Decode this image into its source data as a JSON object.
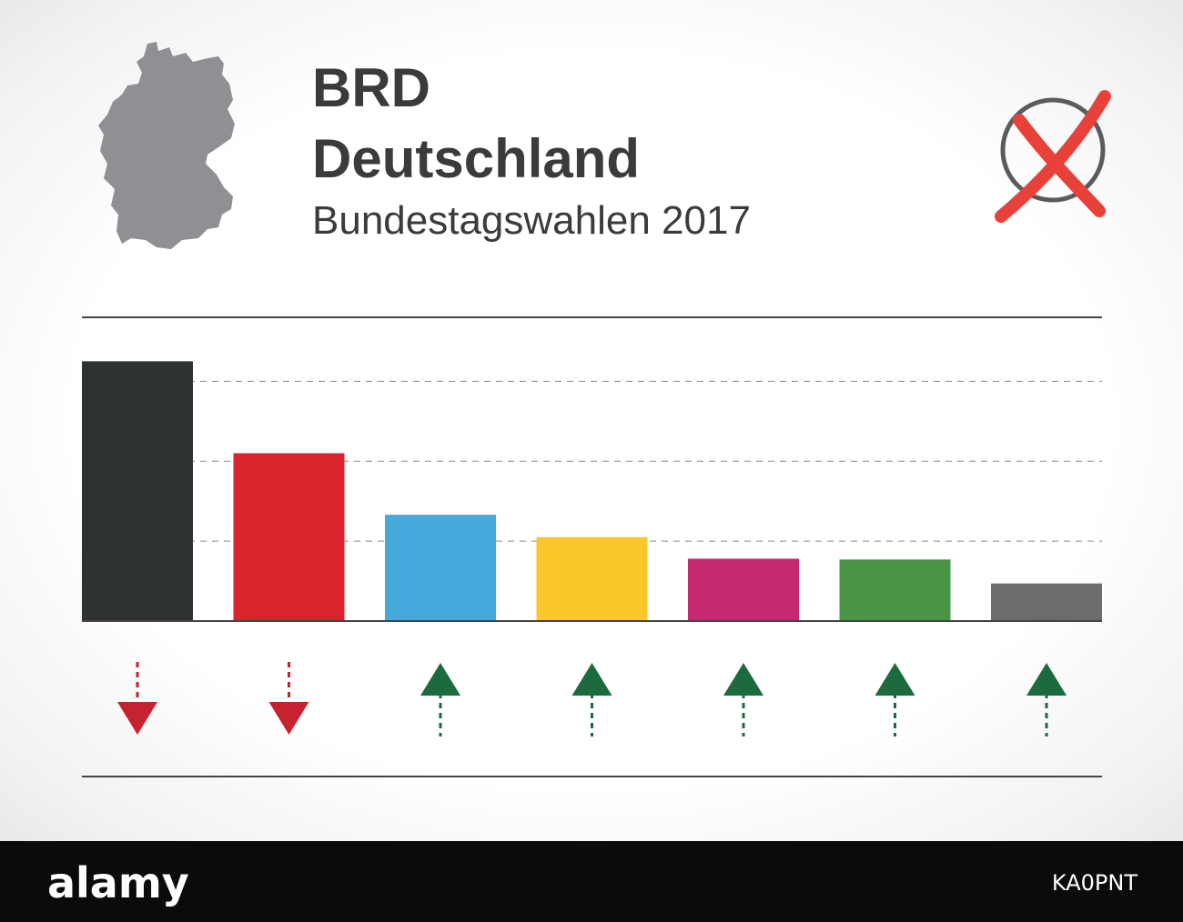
{
  "header": {
    "title_line1": "BRD",
    "title_line2": "Deutschland",
    "subtitle": "Bundestagswahlen 2017"
  },
  "icons": {
    "map": "germany-map-icon",
    "ballot": "ballot-cross-icon"
  },
  "colors": {
    "text": "#3a3b3d",
    "map_fill": "#8e9093",
    "ballot_circle": "#5b5b5d",
    "ballot_cross": "#e8413a",
    "arrow_down": "#c5232f",
    "arrow_up": "#1b6b3d"
  },
  "chart_data": {
    "type": "bar",
    "title": "",
    "xlabel": "",
    "ylabel": "",
    "categories": [
      "",
      "",
      "",
      "",
      "",
      "",
      ""
    ],
    "values": [
      32.5,
      21.0,
      13.3,
      10.5,
      7.8,
      7.7,
      4.7
    ],
    "bar_colors": [
      "#2f3233",
      "#d9232d",
      "#47a8dc",
      "#fcc72b",
      "#c42a72",
      "#4a9446",
      "#6b6c6e"
    ],
    "trend": [
      "down",
      "down",
      "up",
      "up",
      "up",
      "up",
      "up"
    ],
    "ylim": [
      0,
      38
    ],
    "gridlines": [
      10,
      20,
      30
    ],
    "grid": true,
    "legend": "none"
  },
  "footer": {
    "brand": "alamy",
    "image_id": "KA0PNT"
  }
}
